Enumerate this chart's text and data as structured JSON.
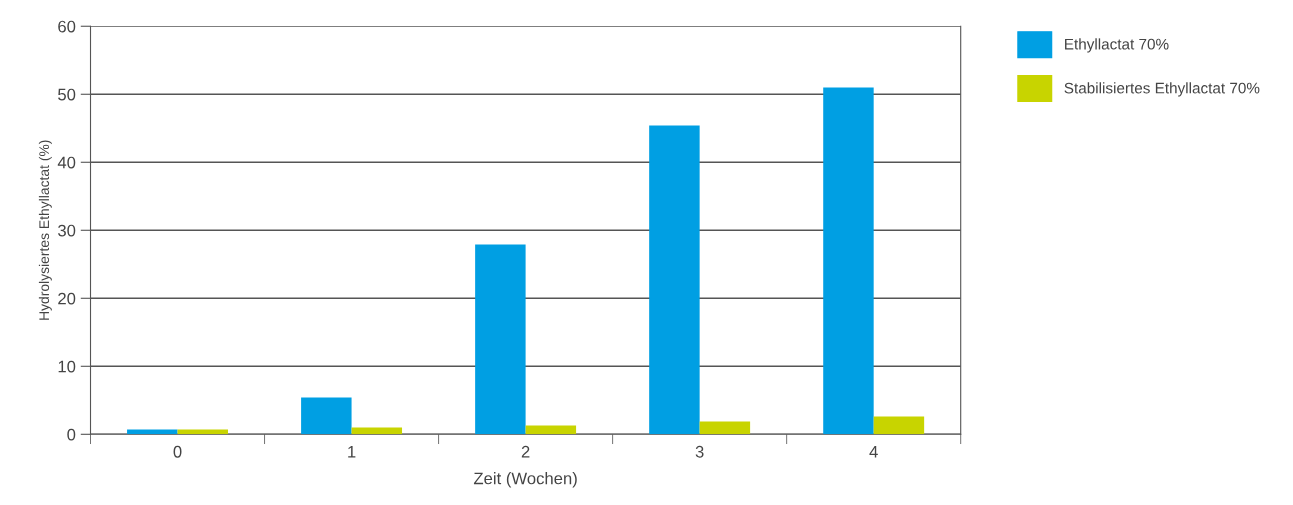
{
  "chart_data": {
    "type": "bar",
    "xlabel": "Zeit (Wochen)",
    "ylabel": "Hydrolysiertes Ethyllactat (%)",
    "categories": [
      "0",
      "1",
      "2",
      "3",
      "4"
    ],
    "series": [
      {
        "name": "Ethyllactat 70%",
        "color": "#009fe3",
        "values": [
          0.7,
          5.4,
          27.9,
          45.4,
          51.0
        ]
      },
      {
        "name": "Stabilisiertes Ethyllactat 70%",
        "color": "#c8d400",
        "values": [
          0.7,
          1.0,
          1.3,
          1.9,
          2.6
        ]
      }
    ],
    "ylim": [
      0,
      60
    ],
    "yticks": [
      0,
      10,
      20,
      30,
      40,
      50,
      60
    ],
    "grid": "y",
    "legend": "top right"
  }
}
